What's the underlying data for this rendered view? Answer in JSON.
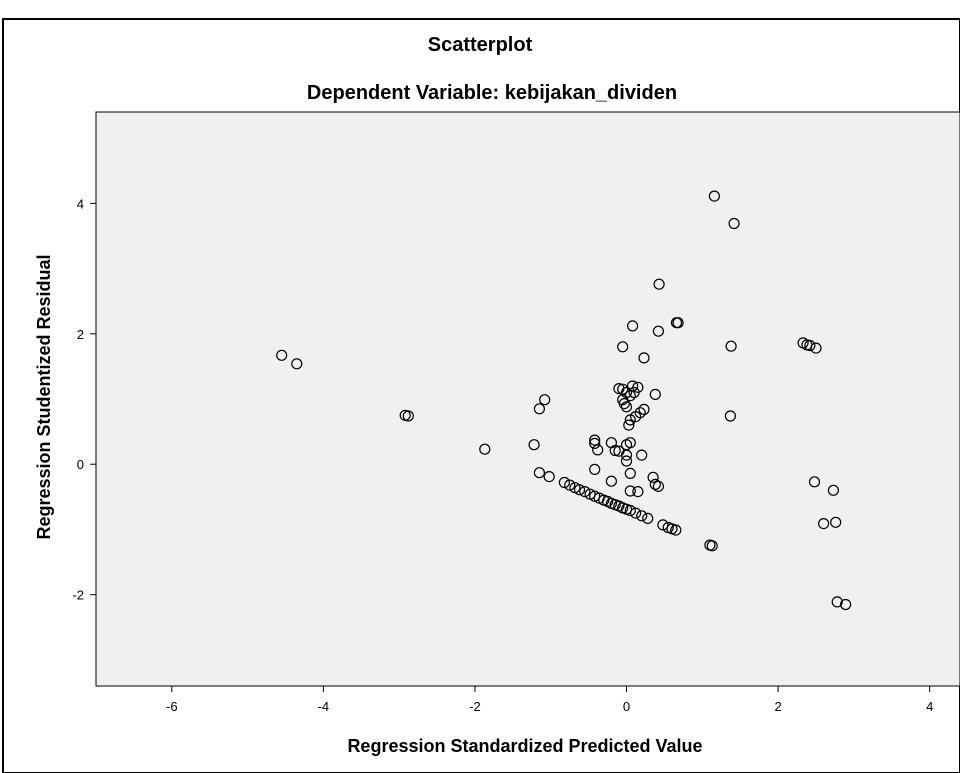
{
  "chart_data": {
    "type": "scatter",
    "title": "Scatterplot",
    "subtitle": "Dependent Variable: kebijakan_dividen",
    "xlabel": "Regression Standardized Predicted Value",
    "ylabel": "Regression Studentized Residual",
    "xlim": [
      -7,
      4.4
    ],
    "ylim": [
      -3.4,
      5.4
    ],
    "xticks": [
      -6,
      -4,
      -2,
      0,
      2,
      4
    ],
    "yticks": [
      -2,
      0,
      2,
      4
    ],
    "xtick_labels": [
      "-6",
      "-4",
      "-2",
      "0",
      "2",
      "4"
    ],
    "ytick_labels": [
      "-2",
      "0",
      "2",
      "4"
    ],
    "grid": false,
    "background": "#f0f0f0",
    "marker": "open-circle",
    "marker_color": "#000000",
    "points": [
      [
        -4.55,
        1.67
      ],
      [
        -4.35,
        1.54
      ],
      [
        -2.92,
        0.75
      ],
      [
        -2.88,
        0.74
      ],
      [
        -1.87,
        0.23
      ],
      [
        -1.22,
        0.3
      ],
      [
        -1.15,
        0.85
      ],
      [
        -1.08,
        0.99
      ],
      [
        -1.15,
        -0.13
      ],
      [
        -1.02,
        -0.19
      ],
      [
        -0.82,
        -0.28
      ],
      [
        -0.75,
        -0.32
      ],
      [
        -0.68,
        -0.36
      ],
      [
        -0.62,
        -0.39
      ],
      [
        -0.55,
        -0.42
      ],
      [
        -0.48,
        -0.46
      ],
      [
        -0.42,
        -0.49
      ],
      [
        -0.36,
        -0.52
      ],
      [
        -0.3,
        -0.55
      ],
      [
        -0.25,
        -0.57
      ],
      [
        -0.2,
        -0.6
      ],
      [
        -0.15,
        -0.62
      ],
      [
        -0.1,
        -0.64
      ],
      [
        -0.05,
        -0.67
      ],
      [
        0.0,
        -0.69
      ],
      [
        0.05,
        -0.71
      ],
      [
        0.12,
        -0.75
      ],
      [
        0.2,
        -0.79
      ],
      [
        0.28,
        -0.83
      ],
      [
        0.48,
        -0.93
      ],
      [
        0.55,
        -0.97
      ],
      [
        0.6,
        -0.99
      ],
      [
        0.65,
        -1.01
      ],
      [
        1.1,
        -1.24
      ],
      [
        1.13,
        -1.25
      ],
      [
        -0.42,
        0.37
      ],
      [
        -0.42,
        0.32
      ],
      [
        -0.38,
        0.22
      ],
      [
        -0.42,
        -0.08
      ],
      [
        -0.2,
        0.33
      ],
      [
        -0.15,
        0.21
      ],
      [
        -0.1,
        0.2
      ],
      [
        0.0,
        0.3
      ],
      [
        0.05,
        0.33
      ],
      [
        0.0,
        0.14
      ],
      [
        0.0,
        0.05
      ],
      [
        0.05,
        -0.14
      ],
      [
        0.05,
        -0.41
      ],
      [
        0.15,
        -0.42
      ],
      [
        0.2,
        0.14
      ],
      [
        0.35,
        -0.2
      ],
      [
        0.38,
        -0.31
      ],
      [
        0.42,
        -0.34
      ],
      [
        -0.2,
        -0.26
      ],
      [
        -0.1,
        1.16
      ],
      [
        -0.05,
        1.15
      ],
      [
        0.0,
        1.1
      ],
      [
        0.05,
        1.05
      ],
      [
        0.1,
        1.1
      ],
      [
        0.15,
        1.18
      ],
      [
        0.08,
        1.2
      ],
      [
        -0.05,
        0.99
      ],
      [
        -0.03,
        0.93
      ],
      [
        0.0,
        0.88
      ],
      [
        0.03,
        0.6
      ],
      [
        0.05,
        0.68
      ],
      [
        0.12,
        0.73
      ],
      [
        0.18,
        0.79
      ],
      [
        0.23,
        0.84
      ],
      [
        0.38,
        1.07
      ],
      [
        -0.05,
        1.8
      ],
      [
        0.08,
        2.12
      ],
      [
        0.23,
        1.63
      ],
      [
        0.42,
        2.04
      ],
      [
        0.43,
        2.76
      ],
      [
        0.66,
        2.17
      ],
      [
        0.68,
        2.17
      ],
      [
        1.16,
        4.11
      ],
      [
        1.42,
        3.69
      ],
      [
        1.38,
        1.81
      ],
      [
        1.37,
        0.74
      ],
      [
        2.33,
        1.86
      ],
      [
        2.38,
        1.83
      ],
      [
        2.42,
        1.82
      ],
      [
        2.5,
        1.78
      ],
      [
        2.48,
        -0.27
      ],
      [
        2.6,
        -0.91
      ],
      [
        2.73,
        -0.4
      ],
      [
        2.76,
        -0.89
      ],
      [
        2.78,
        -2.11
      ],
      [
        2.89,
        -2.15
      ]
    ]
  }
}
